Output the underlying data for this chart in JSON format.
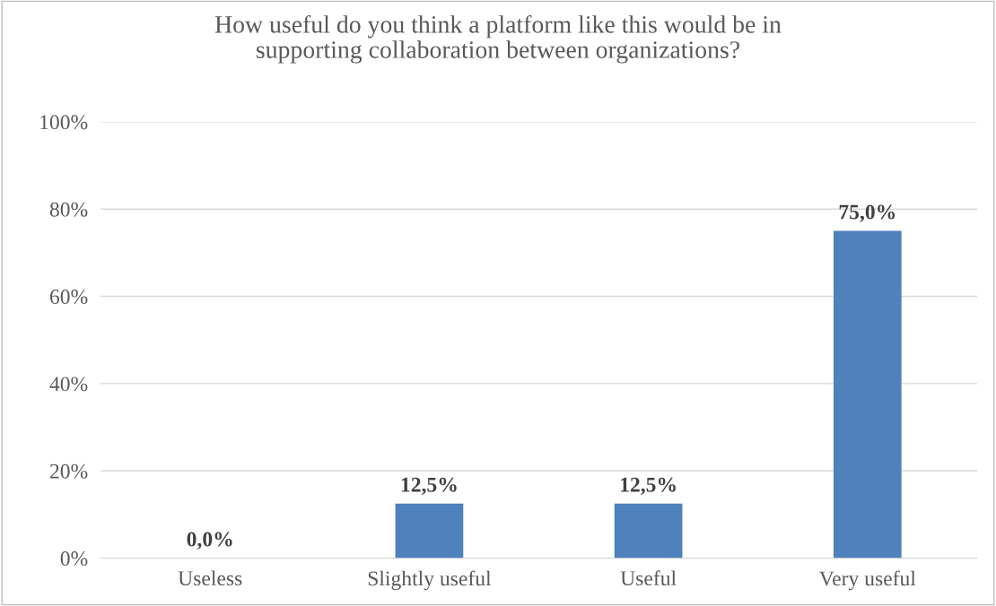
{
  "chart_data": {
    "type": "bar",
    "title": "How useful do you think a platform like this would be in\nsupporting collaboration between organizations?",
    "categories": [
      "Useless",
      "Slightly useful",
      "Useful",
      "Very useful"
    ],
    "values": [
      0,
      12.5,
      12.5,
      75
    ],
    "value_labels": [
      "0,0%",
      "12,5%",
      "12,5%",
      "75,0%"
    ],
    "color": "#4f81bd",
    "ylim": [
      0,
      100
    ],
    "yticks": [
      {
        "value": 0,
        "label": "0%"
      },
      {
        "value": 20,
        "label": "20%"
      },
      {
        "value": 40,
        "label": "40%"
      },
      {
        "value": 60,
        "label": "60%"
      },
      {
        "value": 80,
        "label": "80%"
      },
      {
        "value": 100,
        "label": "100%"
      }
    ],
    "grid": "y",
    "legend": false
  }
}
